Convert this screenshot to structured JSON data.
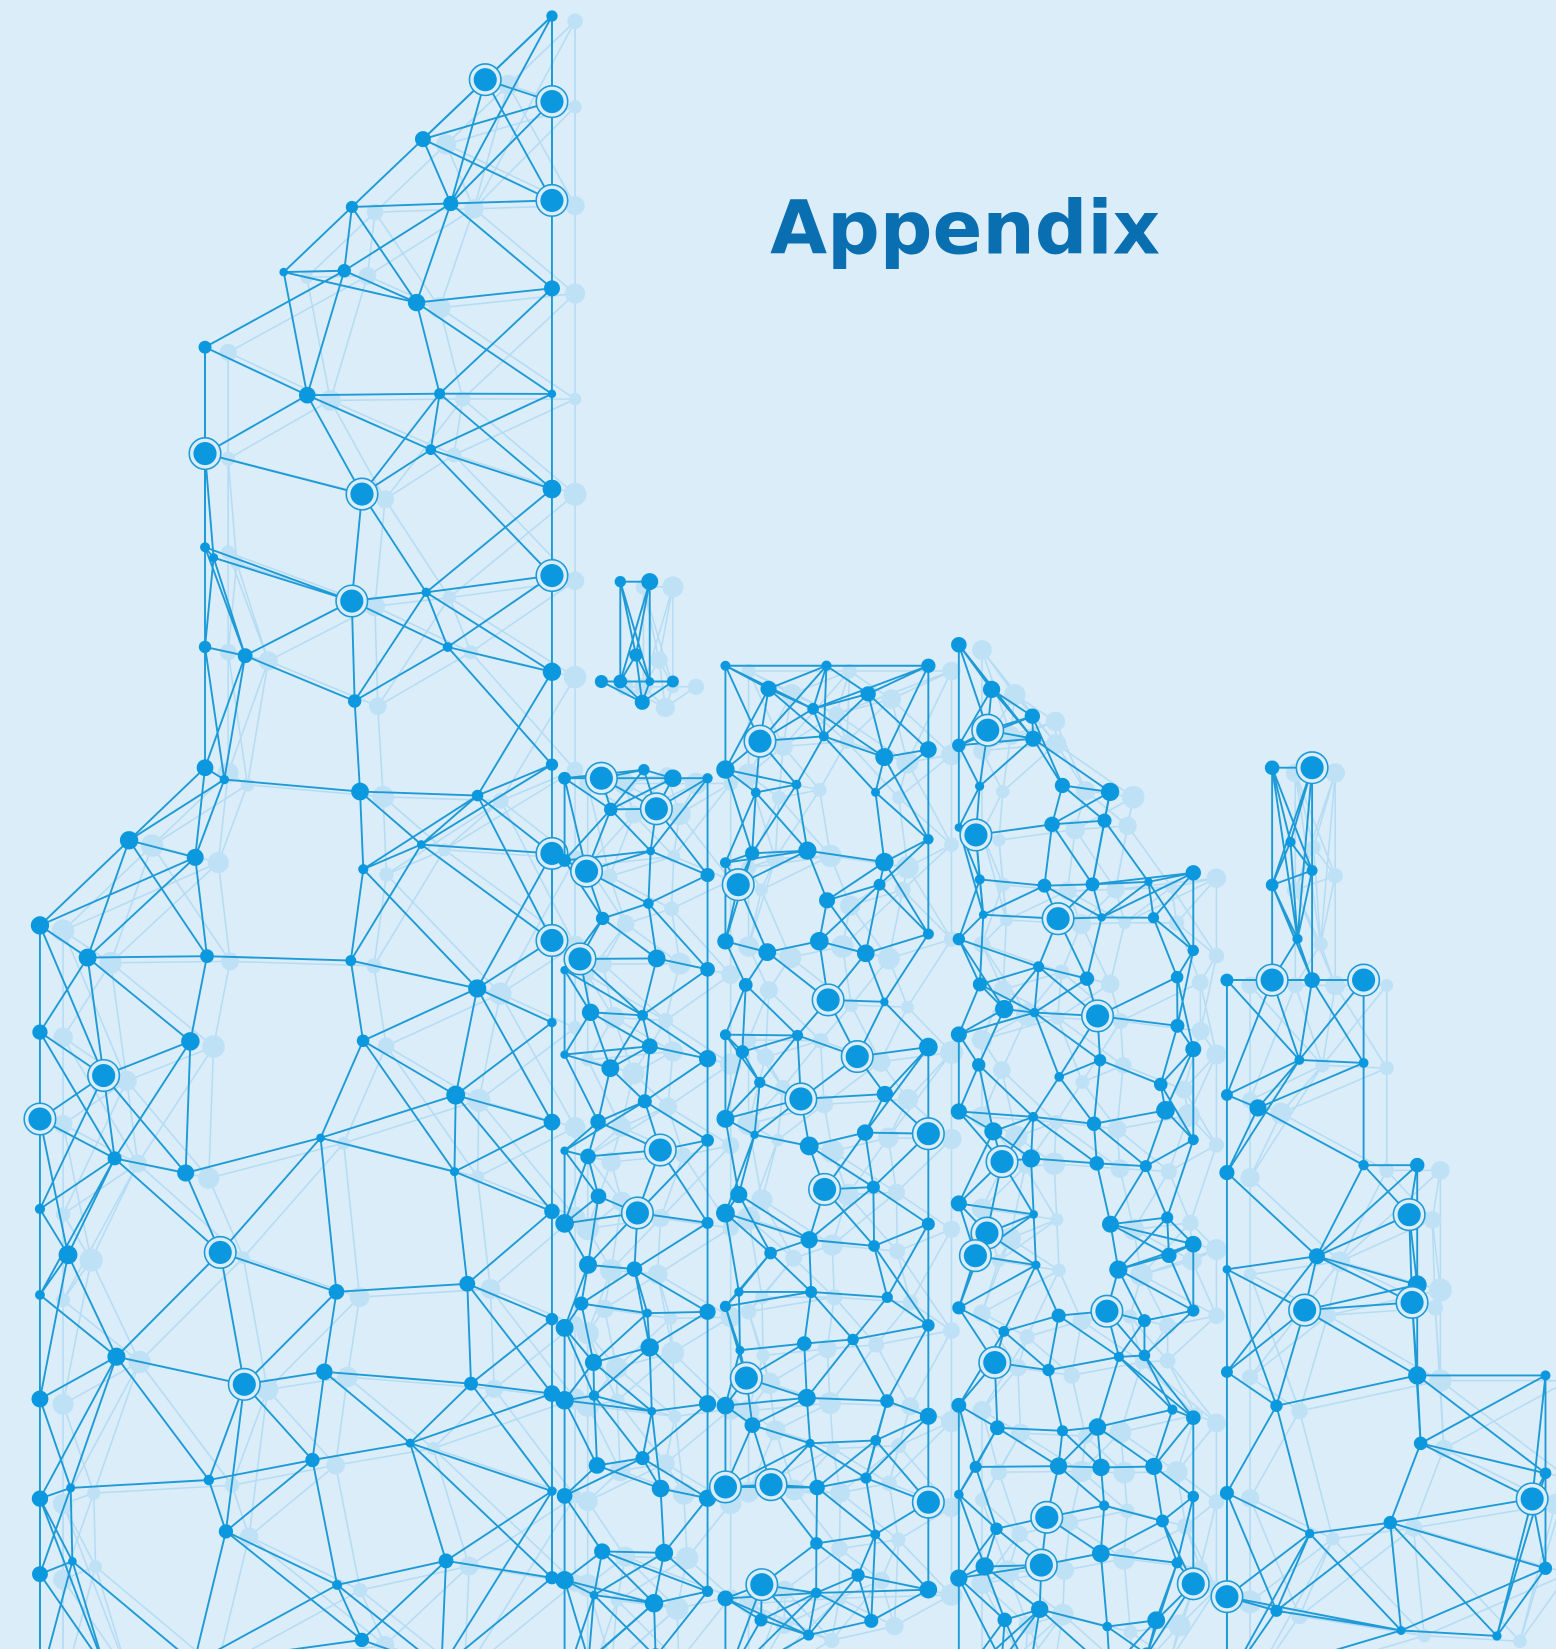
{
  "title": "Appendix"
}
